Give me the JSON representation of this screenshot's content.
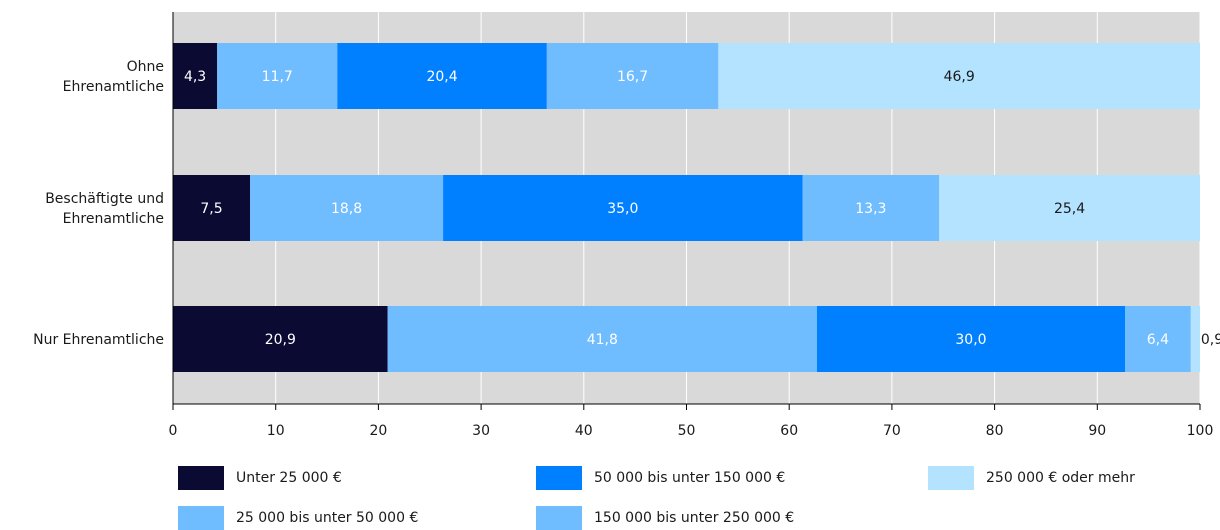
{
  "chart_data": {
    "type": "bar",
    "orientation": "horizontal",
    "stacked": true,
    "categories": [
      "Ohne\nEhrenamtliche",
      "Beschäftigte und\nEhrenamtliche",
      "Nur Ehrenamtliche"
    ],
    "series": [
      {
        "name": "Unter 25 000 €",
        "color": "#0a0a33",
        "label_color": "#ffffff",
        "values": [
          4.3,
          7.5,
          20.9
        ]
      },
      {
        "name": "25 000 bis unter 50 000 €",
        "color": "#6fbcff",
        "label_color": "#ffffff",
        "values": [
          11.7,
          18.8,
          41.8
        ]
      },
      {
        "name": " 50 000 bis unter 150 000 €",
        "color": "#0080ff",
        "label_color": "#ffffff",
        "values": [
          20.4,
          35.0,
          30.0
        ]
      },
      {
        "name": "150 000 bis unter 250 000 €",
        "color": "#6fbcff",
        "label_color": "#ffffff",
        "values": [
          16.7,
          13.3,
          6.4
        ]
      },
      {
        "name": "250 000 € oder mehr",
        "color": "#b3e3ff",
        "label_color": "#1a1a1a",
        "values": [
          46.9,
          25.4,
          0.9
        ]
      }
    ],
    "data_labels": [
      [
        "4,3",
        "11,7",
        "20,4",
        "16,7",
        "46,9"
      ],
      [
        "7,5",
        "18,8",
        "35,0",
        "13,3",
        "25,4"
      ],
      [
        "20,9",
        "41,8",
        "30,0",
        "6,4",
        "0,9"
      ]
    ],
    "xlim": [
      0,
      100
    ],
    "xticks": [
      0,
      10,
      20,
      30,
      40,
      50,
      60,
      70,
      80,
      90,
      100
    ],
    "xtick_labels": [
      "0",
      "10",
      "20",
      "30",
      "40",
      "50",
      "60",
      "70",
      "80",
      "90",
      "100"
    ],
    "plot_background": "#d9d9d9",
    "grid": "vertical",
    "legend_position": "bottom"
  }
}
